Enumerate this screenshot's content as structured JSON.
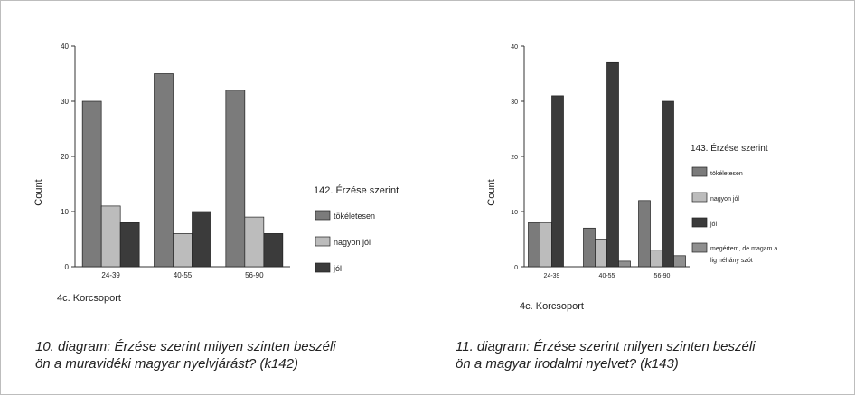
{
  "chart_data": [
    {
      "type": "bar",
      "categories": [
        "24-39",
        "40-55",
        "56-90"
      ],
      "series": [
        {
          "name": "tökéletesen",
          "values": [
            30,
            35,
            32
          ]
        },
        {
          "name": "nagyon jól",
          "values": [
            11,
            6,
            9
          ]
        },
        {
          "name": "jól",
          "values": [
            8,
            10,
            6
          ]
        }
      ],
      "ylabel": "Count",
      "xlabel": "4c. Korcsoport",
      "ylim": [
        0,
        40
      ],
      "yticks": [
        0,
        10,
        20,
        30,
        40
      ],
      "legend_title": "142. Érzése szerint",
      "legend_position": "right",
      "colors": [
        "#7b7b7b",
        "#bcbcbc",
        "#3b3b3b"
      ],
      "caption": [
        "10. diagram: Érzése szerint milyen szinten beszéli",
        "ön a muravidéki magyar nyelvjárást? (k142)"
      ]
    },
    {
      "type": "bar",
      "categories": [
        "24-39",
        "40-55",
        "56-90"
      ],
      "series": [
        {
          "name": "tökéletesen",
          "values": [
            8,
            7,
            12
          ]
        },
        {
          "name": "nagyon jól",
          "values": [
            8,
            5,
            3
          ]
        },
        {
          "name": "jól",
          "values": [
            31,
            37,
            30
          ]
        },
        {
          "name": "megértem, de magam a lig néhány szót",
          "values": [
            0,
            1,
            2
          ]
        }
      ],
      "ylabel": "Count",
      "xlabel": "4c. Korcsoport",
      "ylim": [
        0,
        40
      ],
      "yticks": [
        0,
        10,
        20,
        30,
        40
      ],
      "legend_title": "143. Érzése szerint",
      "legend_position": "right",
      "colors": [
        "#7b7b7b",
        "#bcbcbc",
        "#3b3b3b",
        "#8f8f8f"
      ],
      "caption": [
        "11. diagram: Érzése szerint milyen szinten beszéli",
        "ön a magyar irodalmi nyelvet? (k143)"
      ]
    }
  ]
}
